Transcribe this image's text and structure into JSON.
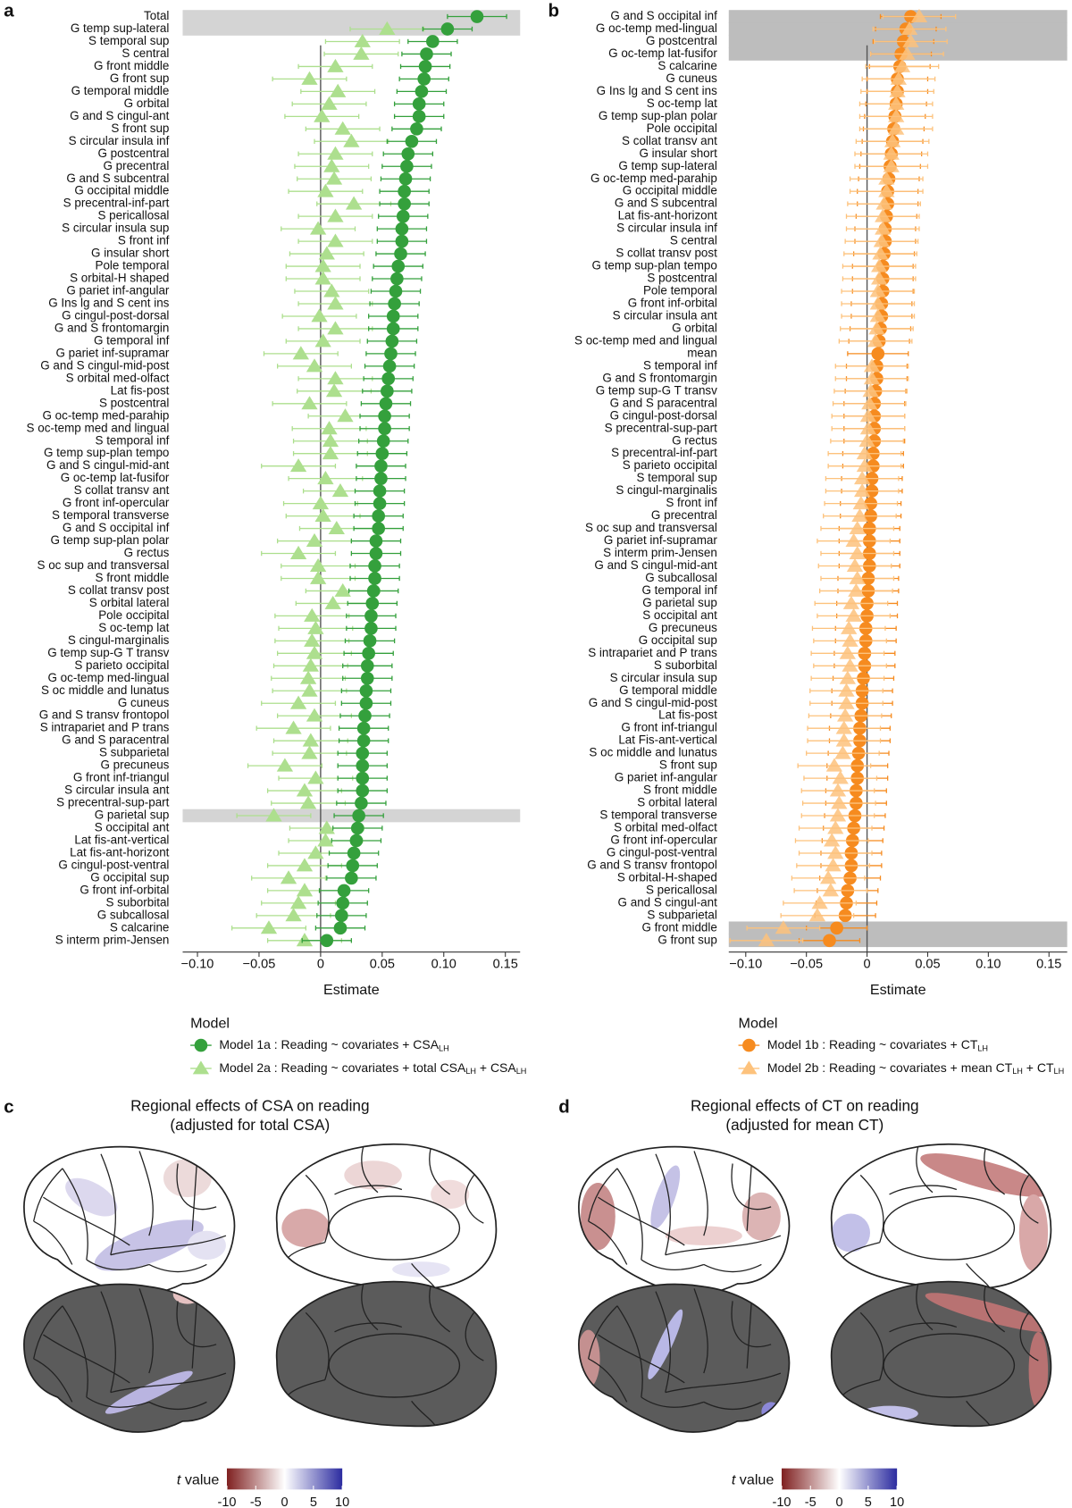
{
  "chart_data": [
    {
      "type": "forest",
      "panel": "a",
      "xlabel": "Estimate",
      "legend_title": "Model",
      "xlim": [
        -0.112,
        0.162
      ],
      "xticks": [
        {
          "value": -0.1,
          "label": "−0.10"
        },
        {
          "value": -0.05,
          "label": "−0.05"
        },
        0,
        {
          "value": 0.05,
          "label": "0.05"
        },
        {
          "value": 0.1,
          "label": "0.10"
        },
        {
          "value": 0.15,
          "label": "0.15"
        }
      ],
      "highlight": [
        "Total",
        "G temp sup-lateral",
        "G parietal sup"
      ],
      "highlight_color": "#d4d4d4",
      "categories": [
        "Total",
        "G temp sup-lateral",
        "S temporal sup",
        "S central",
        "G front middle",
        "G front sup",
        "G temporal middle",
        "G orbital",
        "G and S cingul-ant",
        "S front sup",
        "S circular insula inf",
        "G postcentral",
        "G precentral",
        "G and S subcentral",
        "G occipital middle",
        "S precentral-inf-part",
        "S pericallosal",
        "S circular insula sup",
        "S front inf",
        "G insular short",
        "Pole temporal",
        "S orbital-H shaped",
        "G pariet inf-angular",
        "G Ins lg and S cent ins",
        "G cingul-post-dorsal",
        "G and S frontomargin",
        "G temporal inf",
        "G pariet inf-supramar",
        "G and S cingul-mid-post",
        "S orbital med-olfact",
        "Lat fis-post",
        "S postcentral",
        "G oc-temp med-parahip",
        "S oc-temp med and lingual",
        "S temporal inf",
        "G temp sup-plan tempo",
        "G and S cingul-mid-ant",
        "G oc-temp lat-fusifor",
        "S collat transv ant",
        "G front inf-opercular",
        "S temporal transverse",
        "G and S occipital inf",
        "G temp sup-plan polar",
        "G rectus",
        "S oc sup and transversal",
        "S front middle",
        "S collat transv post",
        "S orbital lateral",
        "Pole occipital",
        "S oc-temp lat",
        "S cingul-marginalis",
        "G temp sup-G T transv",
        "S parieto occipital",
        "G oc-temp med-lingual",
        "S oc middle and lunatus",
        "G cuneus",
        "G and S transv frontopol",
        "S intrapariet and P trans",
        "G and S paracentral",
        "S subparietal",
        "G precuneus",
        "G front inf-triangul",
        "S circular insula ant",
        "S precentral-sup-part",
        "G parietal sup",
        "S occipital ant",
        "Lat fis-ant-vertical",
        "Lat fis-ant-horizont",
        "G cingul-post-ventral",
        "G occipital sup",
        "G front inf-orbital",
        "S suborbital",
        "G subcallosal",
        "S calcarine",
        "S interm prim-Jensen"
      ],
      "series": [
        {
          "name": [
            "Model 1a : Reading ~ covariates + CSA",
            "LH"
          ],
          "color": "#34a03c",
          "marker": "circle",
          "values": [
            0.127,
            0.103,
            0.091,
            0.086,
            0.085,
            0.084,
            0.082,
            0.08,
            0.08,
            0.078,
            0.074,
            0.071,
            0.07,
            0.069,
            0.068,
            0.068,
            0.067,
            0.066,
            0.066,
            0.065,
            0.063,
            0.062,
            0.061,
            0.06,
            0.059,
            0.059,
            0.058,
            0.057,
            0.056,
            0.055,
            0.054,
            0.053,
            0.052,
            0.052,
            0.051,
            0.05,
            0.049,
            0.049,
            0.048,
            0.048,
            0.047,
            0.047,
            0.045,
            0.045,
            0.044,
            0.044,
            0.043,
            0.042,
            0.041,
            0.041,
            0.04,
            0.039,
            0.038,
            0.038,
            0.037,
            0.037,
            0.036,
            0.035,
            0.035,
            0.034,
            0.034,
            0.034,
            0.034,
            0.033,
            0.031,
            0.03,
            0.029,
            0.027,
            0.026,
            0.025,
            0.019,
            0.018,
            0.017,
            0.016,
            0.005
          ],
          "errors": [
            0.024,
            0.02,
            0.02,
            0.02,
            0.02,
            0.02,
            0.02,
            0.02,
            0.02,
            0.02,
            0.02,
            0.02,
            0.02,
            0.02,
            0.02,
            0.02,
            0.02,
            0.02,
            0.02,
            0.02,
            0.02,
            0.02,
            0.02,
            0.02,
            0.02,
            0.02,
            0.02,
            0.02,
            0.02,
            0.02,
            0.02,
            0.02,
            0.02,
            0.02,
            0.02,
            0.02,
            0.02,
            0.02,
            0.02,
            0.02,
            0.02,
            0.02,
            0.02,
            0.02,
            0.02,
            0.02,
            0.02,
            0.02,
            0.02,
            0.02,
            0.02,
            0.02,
            0.02,
            0.02,
            0.02,
            0.02,
            0.02,
            0.02,
            0.02,
            0.02,
            0.02,
            0.02,
            0.02,
            0.02,
            0.02,
            0.02,
            0.02,
            0.02,
            0.02,
            0.02,
            0.02,
            0.02,
            0.02,
            0.02,
            0.02
          ]
        },
        {
          "name": [
            "Model 2a : Reading ~ covariates + total CSA",
            "LH",
            " + CSA",
            "LH"
          ],
          "color": "#addf8e",
          "marker": "triangle",
          "values": [
            null,
            0.054,
            0.034,
            0.033,
            0.012,
            -0.009,
            0.014,
            0.007,
            0.001,
            0.018,
            0.025,
            0.012,
            0.009,
            0.011,
            0.004,
            0.027,
            0.012,
            -0.002,
            0.012,
            0.005,
            0.002,
            0.002,
            0.009,
            0.012,
            -0.001,
            0.012,
            0.002,
            -0.016,
            -0.005,
            0.012,
            0.011,
            -0.009,
            0.02,
            0.007,
            0.008,
            0.008,
            -0.018,
            0.004,
            0.016,
            0,
            0.002,
            0.013,
            -0.005,
            -0.018,
            -0.002,
            -0.002,
            0.018,
            0.01,
            -0.007,
            -0.004,
            -0.007,
            -0.005,
            -0.008,
            -0.01,
            -0.009,
            -0.018,
            -0.005,
            -0.022,
            -0.008,
            -0.009,
            -0.029,
            -0.004,
            -0.013,
            -0.01,
            -0.038,
            0.005,
            0.004,
            -0.004,
            -0.013,
            -0.026,
            -0.013,
            -0.018,
            -0.022,
            -0.042,
            -0.013
          ],
          "errors": [
            null,
            0.03,
            0.03,
            0.03,
            0.03,
            0.03,
            0.03,
            0.03,
            0.03,
            0.03,
            0.03,
            0.03,
            0.03,
            0.03,
            0.03,
            0.03,
            0.03,
            0.03,
            0.03,
            0.03,
            0.03,
            0.03,
            0.03,
            0.03,
            0.03,
            0.03,
            0.03,
            0.03,
            0.03,
            0.03,
            0.03,
            0.03,
            0.03,
            0.03,
            0.03,
            0.03,
            0.03,
            0.03,
            0.03,
            0.03,
            0.03,
            0.03,
            0.03,
            0.03,
            0.03,
            0.03,
            0.03,
            0.03,
            0.03,
            0.03,
            0.03,
            0.03,
            0.03,
            0.03,
            0.03,
            0.03,
            0.03,
            0.03,
            0.03,
            0.03,
            0.03,
            0.03,
            0.03,
            0.03,
            0.03,
            0.03,
            0.03,
            0.03,
            0.03,
            0.03,
            0.03,
            0.03,
            0.03,
            0.03,
            0.03
          ]
        }
      ]
    },
    {
      "type": "forest",
      "panel": "b",
      "xlabel": "Estimate",
      "legend_title": "Model",
      "xlim": [
        -0.114,
        0.165
      ],
      "xticks": [
        {
          "value": -0.1,
          "label": "−0.10"
        },
        {
          "value": -0.05,
          "label": "−0.05"
        },
        0,
        {
          "value": 0.05,
          "label": "0.05"
        },
        {
          "value": 0.1,
          "label": "0.10"
        },
        {
          "value": 0.15,
          "label": "0.15"
        }
      ],
      "highlight": [
        "G and S occipital inf",
        "G oc-temp med-lingual",
        "G postcentral",
        "G oc-temp lat-fusifor",
        "G front middle",
        "G front sup"
      ],
      "highlight_color": "#bdbdbd",
      "categories": [
        "G and S occipital inf",
        "G oc-temp med-lingual",
        "G postcentral",
        "G oc-temp lat-fusifor",
        "S calcarine",
        "G cuneus",
        "G Ins lg and S cent ins",
        "S oc-temp lat",
        "G temp sup-plan polar",
        "Pole occipital",
        "S collat transv ant",
        "G insular short",
        "G temp sup-lateral",
        "G oc-temp med-parahip",
        "G occipital middle",
        "G and S subcentral",
        "Lat fis-ant-horizont",
        "S circular insula inf",
        "S central",
        "S collat transv post",
        "G temp sup-plan tempo",
        "S postcentral",
        "Pole temporal",
        "G front inf-orbital",
        "S circular insula ant",
        "G orbital",
        "S oc-temp med and lingual",
        "mean",
        "S temporal inf",
        "G and S frontomargin",
        "G temp sup-G T transv",
        "G and S paracentral",
        "G cingul-post-dorsal",
        "S precentral-sup-part",
        "G rectus",
        "S precentral-inf-part",
        "S parieto occipital",
        "S temporal sup",
        "S cingul-marginalis",
        "S front inf",
        "G precentral",
        "S oc sup and transversal",
        "G pariet inf-supramar",
        "S interm prim-Jensen",
        "G and S cingul-mid-ant",
        "G subcallosal",
        "G temporal inf",
        "G parietal sup",
        "S occipital ant",
        "G precuneus",
        "G occipital sup",
        "S intrapariet and P trans",
        "S suborbital",
        "S circular insula sup",
        "G temporal middle",
        "G and S cingul-mid-post",
        "Lat fis-post",
        "G front inf-triangul",
        "Lat Fis-ant-vertical",
        "S oc middle and lunatus",
        "S front sup",
        "G pariet inf-angular",
        "S front middle",
        "S orbital lateral",
        "S temporal transverse",
        "S orbital med-olfact",
        "G front inf-opercular",
        "G cingul-post-ventral",
        "G and S transv frontopol",
        "S orbital-H-shaped",
        "S pericallosal",
        "G and S cingul-ant",
        "S subparietal",
        "G front middle",
        "G front sup"
      ],
      "series": [
        {
          "name": [
            "Model 1b : Reading ~ covariates + CT",
            "LH"
          ],
          "color": "#f68b1f",
          "marker": "circle",
          "values": [
            0.036,
            0.032,
            0.03,
            0.028,
            0.027,
            0.025,
            0.025,
            0.024,
            0.023,
            0.022,
            0.021,
            0.02,
            0.019,
            0.018,
            0.017,
            0.017,
            0.016,
            0.015,
            0.015,
            0.014,
            0.013,
            0.013,
            0.013,
            0.012,
            0.012,
            0.011,
            0.01,
            0.009,
            0.008,
            0.008,
            0.007,
            0.006,
            0.006,
            0.006,
            0.006,
            0.005,
            0.005,
            0.004,
            0.004,
            0.003,
            0.003,
            0.002,
            0.002,
            0.002,
            0.002,
            0.001,
            0.001,
            0,
            0,
            -0.001,
            -0.001,
            -0.002,
            -0.002,
            -0.003,
            -0.004,
            -0.004,
            -0.005,
            -0.006,
            -0.006,
            -0.007,
            -0.008,
            -0.008,
            -0.009,
            -0.009,
            -0.01,
            -0.011,
            -0.012,
            -0.013,
            -0.013,
            -0.014,
            -0.016,
            -0.017,
            -0.018,
            -0.025,
            -0.031
          ],
          "errors": [
            0.025,
            0.025,
            0.025,
            0.025,
            0.025,
            0.025,
            0.025,
            0.025,
            0.025,
            0.025,
            0.025,
            0.025,
            0.025,
            0.025,
            0.025,
            0.025,
            0.025,
            0.025,
            0.025,
            0.025,
            0.025,
            0.025,
            0.025,
            0.025,
            0.025,
            0.025,
            0.025,
            0.025,
            0.025,
            0.025,
            0.025,
            0.025,
            0.025,
            0.025,
            0.025,
            0.025,
            0.025,
            0.025,
            0.025,
            0.025,
            0.025,
            0.025,
            0.025,
            0.025,
            0.025,
            0.025,
            0.025,
            0.025,
            0.025,
            0.025,
            0.025,
            0.025,
            0.025,
            0.025,
            0.025,
            0.025,
            0.025,
            0.025,
            0.025,
            0.025,
            0.025,
            0.025,
            0.025,
            0.025,
            0.025,
            0.025,
            0.025,
            0.025,
            0.025,
            0.025,
            0.025,
            0.025,
            0.025,
            0.025,
            0.025
          ]
        },
        {
          "name": [
            "Model 2b : Reading ~ covariates + mean CT",
            "LH",
            " + CT",
            "LH"
          ],
          "color": "#fdc27c",
          "marker": "triangle",
          "values": [
            0.043,
            0.035,
            0.036,
            0.033,
            0.029,
            0.026,
            0.025,
            0.024,
            0.024,
            0.024,
            0.021,
            0.02,
            0.02,
            0.016,
            0.016,
            0.014,
            0.013,
            0.013,
            0.012,
            0.011,
            0.01,
            0.01,
            0.009,
            0.009,
            0.009,
            0.008,
            0.007,
            null,
            0.004,
            0.004,
            0.003,
            0.002,
            0.001,
            0.001,
            0,
            -0.002,
            -0.002,
            -0.004,
            -0.004,
            -0.005,
            -0.006,
            -0.008,
            -0.011,
            -0.008,
            -0.01,
            -0.008,
            -0.009,
            -0.013,
            -0.011,
            -0.015,
            -0.014,
            -0.016,
            -0.014,
            -0.016,
            -0.017,
            -0.017,
            -0.018,
            -0.019,
            -0.019,
            -0.02,
            -0.027,
            -0.022,
            -0.024,
            -0.023,
            -0.024,
            -0.026,
            -0.029,
            -0.026,
            -0.028,
            -0.032,
            -0.03,
            -0.039,
            -0.041,
            -0.069,
            -0.083
          ],
          "errors": [
            0.03,
            0.03,
            0.03,
            0.03,
            0.03,
            0.03,
            0.03,
            0.03,
            0.03,
            0.03,
            0.03,
            0.03,
            0.03,
            0.03,
            0.03,
            0.03,
            0.03,
            0.03,
            0.03,
            0.03,
            0.03,
            0.03,
            0.03,
            0.03,
            0.03,
            0.03,
            0.03,
            null,
            0.03,
            0.03,
            0.03,
            0.03,
            0.03,
            0.03,
            0.03,
            0.03,
            0.03,
            0.03,
            0.03,
            0.03,
            0.03,
            0.03,
            0.03,
            0.03,
            0.03,
            0.03,
            0.03,
            0.03,
            0.03,
            0.03,
            0.03,
            0.03,
            0.03,
            0.03,
            0.03,
            0.03,
            0.03,
            0.03,
            0.03,
            0.03,
            0.03,
            0.03,
            0.03,
            0.03,
            0.03,
            0.03,
            0.03,
            0.03,
            0.03,
            0.03,
            0.03,
            0.03,
            0.03,
            0.03,
            0.03
          ]
        }
      ]
    }
  ],
  "maps": {
    "panels": [
      {
        "label": "c",
        "title": [
          "Regional effects of CSA on reading",
          "(adjusted for total CSA)"
        ]
      },
      {
        "label": "d",
        "title": [
          "Regional effects of CT on reading",
          "(adjusted for mean CT)"
        ]
      }
    ],
    "colorbar": {
      "label": [
        "t",
        " value"
      ],
      "lim": [
        -10,
        10
      ],
      "ticks": [
        -10,
        -5,
        0,
        5,
        10
      ]
    }
  }
}
